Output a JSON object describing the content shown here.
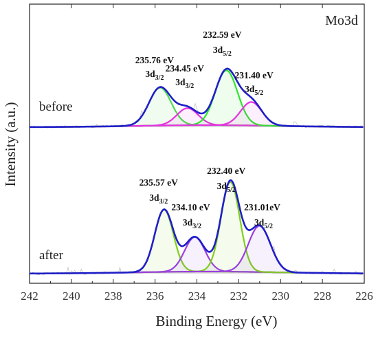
{
  "chart_data": {
    "type": "line",
    "title": "Mo3d",
    "xlabel": "Binding Energy (eV)",
    "ylabel": "Intensity (a.u.)",
    "xlim": [
      242,
      226
    ],
    "x_reversed": true,
    "xticks": [
      "242",
      "240",
      "238",
      "236",
      "234",
      "232",
      "230",
      "228",
      "226"
    ],
    "y_ticks_shown": false,
    "colors": {
      "envelope": "#1f1fc8",
      "before_3d32": "#4ddd4d",
      "before_3d52": "#2ce62c",
      "before_mid": "#e632e0",
      "before_low": "#e632e0",
      "after_3d32": "#7fcf1a",
      "after_3d52": "#7fcf1a",
      "after_mid": "#9a3fe0",
      "after_low": "#9a3fe0",
      "background": "#2b6d2b",
      "raw": "#bbbbbb"
    },
    "panels": [
      {
        "name": "before",
        "peaks": [
          {
            "position": 235.76,
            "label": "235.76 eV",
            "orbital_main": "3d",
            "orbital_sub": "3/2",
            "height": 1.0,
            "fwhm": 1.25
          },
          {
            "position": 234.45,
            "label": "234.45 eV",
            "orbital_main": "3d",
            "orbital_sub": "3/2",
            "height": 0.45,
            "fwhm": 1.2
          },
          {
            "position": 232.59,
            "label": "232.59 eV",
            "orbital_main": "3d",
            "orbital_sub": "5/2",
            "height": 1.45,
            "fwhm": 1.25
          },
          {
            "position": 231.4,
            "label": "231.40 eV",
            "orbital_main": "3d",
            "orbital_sub": "5/2",
            "height": 0.62,
            "fwhm": 1.2
          }
        ]
      },
      {
        "name": "after",
        "peaks": [
          {
            "position": 235.57,
            "label": "235.57 eV",
            "orbital_main": "3d",
            "orbital_sub": "3/2",
            "height": 1.35,
            "fwhm": 1.05
          },
          {
            "position": 234.1,
            "label": "234.10 eV",
            "orbital_main": "3d",
            "orbital_sub": "3/2",
            "height": 0.75,
            "fwhm": 1.15
          },
          {
            "position": 232.4,
            "label": "232.40 eV",
            "orbital_main": "3d",
            "orbital_sub": "5/2",
            "height": 1.95,
            "fwhm": 1.05
          },
          {
            "position": 231.01,
            "label": "231.01eV",
            "orbital_main": "3d",
            "orbital_sub": "5/2",
            "height": 1.0,
            "fwhm": 1.25
          }
        ]
      }
    ]
  }
}
